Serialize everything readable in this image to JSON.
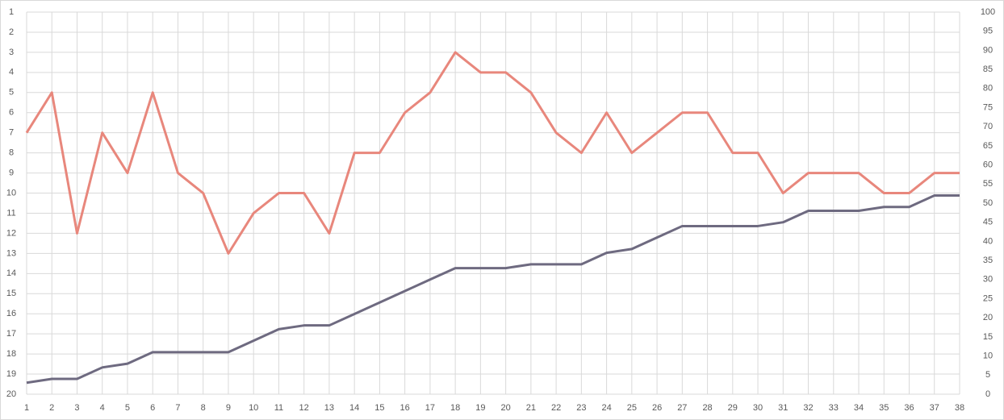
{
  "chart_data": {
    "type": "line",
    "categories": [
      1,
      2,
      3,
      4,
      5,
      6,
      7,
      8,
      9,
      10,
      11,
      12,
      13,
      14,
      15,
      16,
      17,
      18,
      19,
      20,
      21,
      22,
      23,
      24,
      25,
      26,
      27,
      28,
      29,
      30,
      31,
      32,
      33,
      34,
      35,
      36,
      37,
      38
    ],
    "series": [
      {
        "color": "#e8877c",
        "axis": "y",
        "values": [
          7,
          5,
          12,
          7,
          9,
          5,
          9,
          10,
          13,
          11,
          10,
          10,
          12,
          8,
          8,
          6,
          5,
          3,
          4,
          4,
          5,
          7,
          8,
          6,
          8,
          7,
          6,
          6,
          8,
          8,
          10,
          9,
          9,
          9,
          10,
          10,
          9,
          9
        ]
      },
      {
        "color": "#6e6a80",
        "axis": "y2",
        "values": [
          3,
          4,
          4,
          7,
          8,
          11,
          11,
          11,
          11,
          14,
          17,
          18,
          18,
          21,
          24,
          27,
          30,
          33,
          33,
          33,
          34,
          34,
          34,
          37,
          38,
          41,
          44,
          44,
          44,
          44,
          45,
          48,
          48,
          48,
          49,
          49,
          52,
          52
        ]
      }
    ],
    "ylim": [
      20,
      1
    ],
    "yticks": [
      1,
      2,
      3,
      4,
      5,
      6,
      7,
      8,
      9,
      10,
      11,
      12,
      13,
      14,
      15,
      16,
      17,
      18,
      19,
      20
    ],
    "y2lim": [
      0,
      100
    ],
    "y2ticks": [
      0,
      5,
      10,
      15,
      20,
      25,
      30,
      35,
      40,
      45,
      50,
      55,
      60,
      65,
      70,
      75,
      80,
      85,
      90,
      95,
      100
    ],
    "grid": true
  }
}
